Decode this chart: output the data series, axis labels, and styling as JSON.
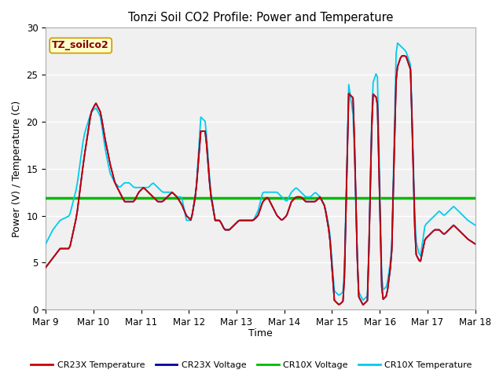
{
  "title": "Tonzi Soil CO2 Profile: Power and Temperature",
  "ylabel": "Power (V) / Temperature (C)",
  "xlabel": "Time",
  "ylim": [
    0,
    30
  ],
  "xtick_labels": [
    "Mar 9",
    "Mar 10",
    "Mar 11",
    "Mar 12",
    "Mar 13",
    "Mar 14",
    "Mar 15",
    "Mar 16",
    "Mar 17",
    "Mar 18"
  ],
  "ytick_values": [
    0,
    5,
    10,
    15,
    20,
    25,
    30
  ],
  "bg_color": "#e8e8e8",
  "plot_bg_color": "#f0f0f0",
  "cr23x_temp_color": "#cc0000",
  "cr23x_volt_color": "#000099",
  "cr10x_volt_color": "#00bb00",
  "cr10x_temp_color": "#00ccee",
  "constant_volt_value": 11.9,
  "annotation_text": "TZ_soilco2",
  "annotation_bg": "#ffffcc",
  "annotation_border": "#cc9900",
  "legend_labels": [
    "CR23X Temperature",
    "CR23X Voltage",
    "CR10X Voltage",
    "CR10X Temperature"
  ],
  "legend_colors": [
    "#cc0000",
    "#000099",
    "#00bb00",
    "#00ccee"
  ],
  "cr23x_temp_x": [
    0,
    0.15,
    0.3,
    0.5,
    0.65,
    0.8,
    0.95,
    1.05,
    1.15,
    1.25,
    1.35,
    1.45,
    1.55,
    1.65,
    1.75,
    1.85,
    1.95,
    2.05,
    2.15,
    2.25,
    2.35,
    2.45,
    2.55,
    2.65,
    2.75,
    2.85,
    2.95,
    3.05,
    3.15,
    3.25,
    3.35,
    3.45,
    3.55,
    3.65,
    3.75,
    3.85,
    3.95,
    4.05,
    4.15,
    4.25,
    4.35,
    4.45,
    4.55,
    4.65,
    4.75,
    4.85,
    4.95,
    5.05,
    5.15,
    5.25,
    5.35,
    5.45,
    5.55,
    5.65,
    5.75,
    5.85,
    5.95,
    6.05,
    6.15,
    6.25,
    6.35,
    6.45,
    6.55,
    6.65,
    6.75,
    6.85,
    6.95,
    7.05,
    7.15,
    7.25,
    7.35,
    7.45,
    7.55,
    7.65,
    7.75,
    7.85,
    7.95,
    8.05,
    8.15,
    8.25,
    8.35,
    8.45,
    8.55,
    8.65,
    8.75,
    8.85,
    9.0
  ],
  "cr23x_temp_y": [
    4.5,
    5.5,
    6.5,
    6.5,
    10.0,
    16.0,
    21.0,
    22.0,
    21.0,
    18.0,
    15.5,
    13.5,
    12.5,
    11.5,
    11.5,
    11.5,
    12.5,
    13.0,
    12.5,
    12.0,
    11.5,
    11.5,
    12.0,
    12.5,
    12.0,
    11.2,
    10.0,
    9.5,
    12.5,
    19.0,
    19.0,
    12.5,
    9.5,
    9.5,
    8.5,
    8.5,
    9.0,
    9.5,
    9.5,
    9.5,
    9.5,
    10.0,
    11.5,
    12.0,
    11.0,
    10.0,
    9.5,
    10.0,
    11.5,
    12.0,
    12.0,
    11.5,
    11.5,
    11.5,
    12.0,
    11.0,
    8.0,
    1.0,
    0.5,
    1.0,
    23.0,
    22.5,
    1.5,
    0.5,
    1.0,
    23.0,
    22.5,
    1.0,
    1.5,
    5.5,
    25.5,
    27.0,
    27.0,
    25.5,
    6.0,
    5.0,
    7.5,
    8.0,
    8.5,
    8.5,
    8.0,
    8.5,
    9.0,
    8.5,
    8.0,
    7.5,
    7.0
  ],
  "cr10x_temp_x": [
    0,
    0.15,
    0.3,
    0.5,
    0.65,
    0.8,
    0.95,
    1.05,
    1.15,
    1.25,
    1.35,
    1.45,
    1.55,
    1.65,
    1.75,
    1.85,
    1.95,
    2.05,
    2.15,
    2.25,
    2.35,
    2.45,
    2.55,
    2.65,
    2.75,
    2.85,
    2.95,
    3.05,
    3.15,
    3.25,
    3.35,
    3.45,
    3.55,
    3.65,
    3.75,
    3.85,
    3.95,
    4.05,
    4.15,
    4.25,
    4.35,
    4.45,
    4.55,
    4.65,
    4.75,
    4.85,
    4.95,
    5.05,
    5.15,
    5.25,
    5.35,
    5.45,
    5.55,
    5.65,
    5.75,
    5.85,
    5.95,
    6.05,
    6.15,
    6.25,
    6.35,
    6.45,
    6.55,
    6.65,
    6.75,
    6.85,
    6.95,
    7.05,
    7.15,
    7.25,
    7.35,
    7.45,
    7.55,
    7.65,
    7.75,
    7.85,
    7.95,
    8.05,
    8.15,
    8.25,
    8.35,
    8.45,
    8.55,
    8.65,
    8.75,
    8.85,
    9.0
  ],
  "cr10x_temp_y": [
    7.0,
    8.5,
    9.5,
    10.0,
    13.0,
    18.5,
    21.0,
    21.5,
    20.5,
    17.0,
    14.5,
    13.5,
    13.0,
    13.5,
    13.5,
    13.0,
    13.0,
    13.0,
    13.0,
    13.5,
    13.0,
    12.5,
    12.5,
    12.5,
    12.0,
    12.0,
    9.5,
    9.5,
    12.5,
    20.5,
    20.0,
    13.0,
    9.5,
    9.5,
    8.5,
    8.5,
    9.0,
    9.5,
    9.5,
    9.5,
    9.5,
    10.5,
    12.5,
    12.5,
    12.5,
    12.5,
    12.0,
    11.5,
    12.5,
    13.0,
    12.5,
    12.0,
    12.0,
    12.5,
    12.0,
    11.0,
    8.5,
    2.0,
    1.5,
    2.0,
    24.0,
    20.5,
    2.0,
    1.0,
    1.5,
    24.0,
    25.5,
    2.0,
    2.5,
    6.0,
    28.5,
    28.0,
    27.5,
    26.0,
    7.5,
    5.5,
    9.0,
    9.5,
    10.0,
    10.5,
    10.0,
    10.5,
    11.0,
    10.5,
    10.0,
    9.5,
    9.0
  ]
}
